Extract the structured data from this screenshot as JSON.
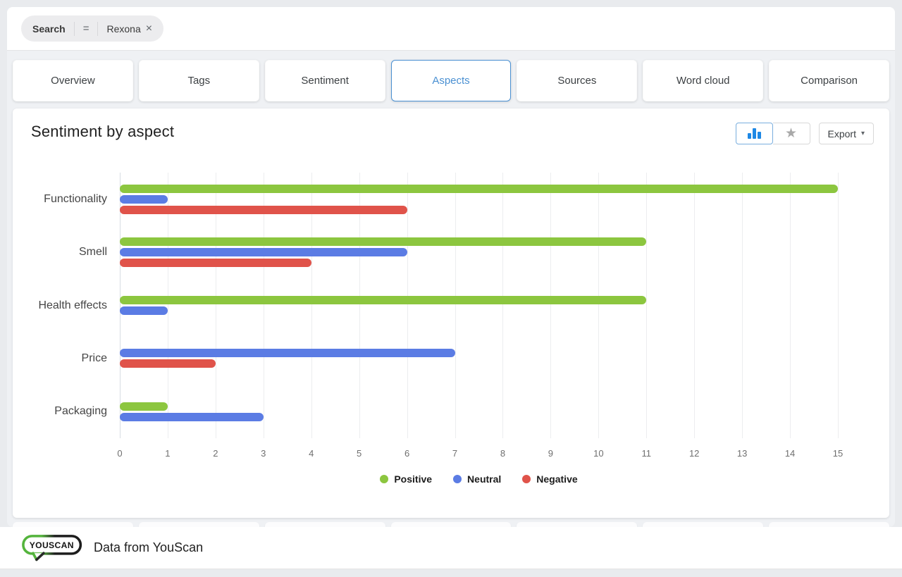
{
  "search_bar": {
    "label": "Search",
    "operator": "=",
    "chip": "Rexona"
  },
  "icons": {
    "close": "×",
    "caret": "▾",
    "star": "★"
  },
  "tabs": [
    {
      "label": "Overview",
      "active": false
    },
    {
      "label": "Tags",
      "active": false
    },
    {
      "label": "Sentiment",
      "active": false
    },
    {
      "label": "Aspects",
      "active": true
    },
    {
      "label": "Sources",
      "active": false
    },
    {
      "label": "Word cloud",
      "active": false
    },
    {
      "label": "Comparison",
      "active": false
    }
  ],
  "card": {
    "title": "Sentiment by aspect",
    "toolbar": {
      "export_label": "Export"
    }
  },
  "chart_data": {
    "type": "bar",
    "orientation": "horizontal",
    "title": "Sentiment by aspect",
    "categories": [
      "Functionality",
      "Smell",
      "Health effects",
      "Price",
      "Packaging"
    ],
    "series": [
      {
        "name": "Positive",
        "color": "#8CC63F",
        "values": [
          15,
          11,
          11,
          0,
          1
        ]
      },
      {
        "name": "Neutral",
        "color": "#5B7CE4",
        "values": [
          1,
          6,
          1,
          7,
          3
        ]
      },
      {
        "name": "Negative",
        "color": "#E0534A",
        "values": [
          6,
          4,
          0,
          2,
          0
        ]
      }
    ],
    "xlim": [
      0,
      15
    ],
    "x_ticks": [
      0,
      1,
      2,
      3,
      4,
      5,
      6,
      7,
      8,
      9,
      10,
      11,
      12,
      13,
      14,
      15
    ],
    "grid": true,
    "legend_position": "bottom"
  },
  "legend": [
    {
      "label": "Positive",
      "color": "#8CC63F"
    },
    {
      "label": "Neutral",
      "color": "#5B7CE4"
    },
    {
      "label": "Negative",
      "color": "#E0534A"
    }
  ],
  "footer": {
    "logo_text": "YOUSCAN",
    "text": "Data from YouScan"
  },
  "colors": {
    "active_tab": "#4a90d2",
    "positive": "#8CC63F",
    "neutral": "#5B7CE4",
    "negative": "#E0534A"
  }
}
